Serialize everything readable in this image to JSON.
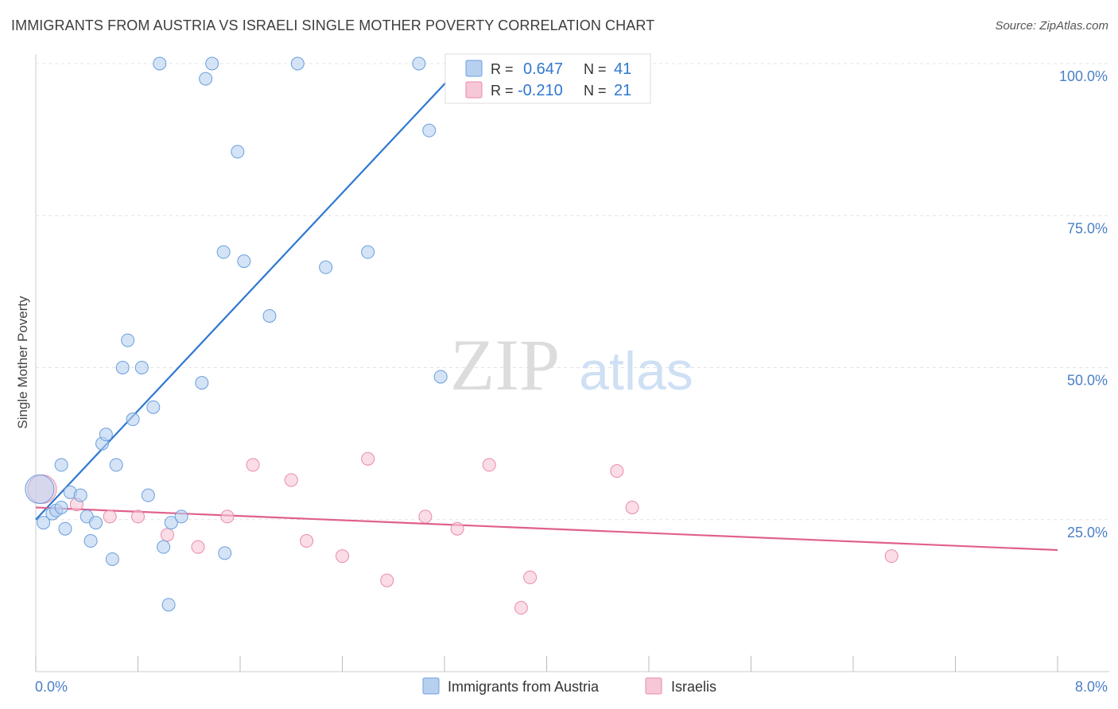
{
  "title": "IMMIGRANTS FROM AUSTRIA VS ISRAELI SINGLE MOTHER POVERTY CORRELATION CHART",
  "source": "Source: ZipAtlas.com",
  "watermark": {
    "zip": "ZIP",
    "atlas": "atlas"
  },
  "colors": {
    "blue": "#6a9fdc",
    "blue_fill": "#b8d0f0",
    "blue_line": "#2f78d0",
    "pink": "#e98aaa",
    "pink_fill": "#f6c7d6",
    "pink_line": "#e0608b",
    "tick_text": "#4a7fc8",
    "grid": "#e3e3e3"
  },
  "legend_box": {
    "rows": [
      {
        "r_label": "R =",
        "r_value": "0.647",
        "n_label": "N =",
        "n_value": "41"
      },
      {
        "r_label": "R =",
        "r_value": "-0.210",
        "n_label": "N =",
        "n_value": "21"
      }
    ]
  },
  "bottom_legend": [
    "Immigrants from Austria",
    "Israelis"
  ],
  "chart_data": {
    "type": "scatter",
    "title": "IMMIGRANTS FROM AUSTRIA VS ISRAELI SINGLE MOTHER POVERTY CORRELATION CHART",
    "xlabel": "",
    "ylabel": "Single Mother Poverty",
    "xlim": [
      0,
      8
    ],
    "ylim": [
      0,
      100
    ],
    "x_tick_labels": [
      "0.0%",
      "8.0%"
    ],
    "y_tick_labels": [
      "25.0%",
      "50.0%",
      "75.0%",
      "100.0%"
    ],
    "y_ticks": [
      25,
      50,
      75,
      100
    ],
    "grid": true,
    "legend_position": "top-center",
    "series": [
      {
        "name": "Immigrants from Austria",
        "color": "#6a9fdc",
        "trend": {
          "x": [
            0.0,
            3.35
          ],
          "y": [
            25.0,
            100.0
          ]
        },
        "points": [
          {
            "x": 0.03,
            "y": 30.0,
            "big": true
          },
          {
            "x": 0.06,
            "y": 24.5
          },
          {
            "x": 0.13,
            "y": 26.0
          },
          {
            "x": 0.16,
            "y": 26.5
          },
          {
            "x": 0.2,
            "y": 34.0
          },
          {
            "x": 0.2,
            "y": 27.0
          },
          {
            "x": 0.23,
            "y": 23.5
          },
          {
            "x": 0.27,
            "y": 29.5
          },
          {
            "x": 0.35,
            "y": 29.0
          },
          {
            "x": 0.4,
            "y": 25.5
          },
          {
            "x": 0.43,
            "y": 21.5
          },
          {
            "x": 0.47,
            "y": 24.5
          },
          {
            "x": 0.52,
            "y": 37.5
          },
          {
            "x": 0.55,
            "y": 39.0
          },
          {
            "x": 0.6,
            "y": 18.5
          },
          {
            "x": 0.63,
            "y": 34.0
          },
          {
            "x": 0.68,
            "y": 50.0
          },
          {
            "x": 0.72,
            "y": 54.5
          },
          {
            "x": 0.76,
            "y": 41.5
          },
          {
            "x": 0.83,
            "y": 50.0
          },
          {
            "x": 0.88,
            "y": 29.0
          },
          {
            "x": 0.92,
            "y": 43.5
          },
          {
            "x": 0.97,
            "y": 100.0
          },
          {
            "x": 1.0,
            "y": 20.5
          },
          {
            "x": 1.04,
            "y": 11.0
          },
          {
            "x": 1.06,
            "y": 24.5
          },
          {
            "x": 1.14,
            "y": 25.5
          },
          {
            "x": 1.3,
            "y": 47.5
          },
          {
            "x": 1.33,
            "y": 97.5
          },
          {
            "x": 1.38,
            "y": 100.0
          },
          {
            "x": 1.47,
            "y": 69.0
          },
          {
            "x": 1.48,
            "y": 19.5
          },
          {
            "x": 1.58,
            "y": 85.5
          },
          {
            "x": 1.63,
            "y": 67.5
          },
          {
            "x": 1.83,
            "y": 58.5
          },
          {
            "x": 2.05,
            "y": 100.0
          },
          {
            "x": 2.27,
            "y": 66.5
          },
          {
            "x": 2.6,
            "y": 69.0
          },
          {
            "x": 3.0,
            "y": 100.0
          },
          {
            "x": 3.08,
            "y": 89.0
          },
          {
            "x": 3.17,
            "y": 48.5
          }
        ]
      },
      {
        "name": "Israelis",
        "color": "#e98aaa",
        "trend": {
          "x": [
            0.0,
            8.0
          ],
          "y": [
            27.0,
            20.0
          ]
        },
        "points": [
          {
            "x": 0.05,
            "y": 30.0,
            "big": true
          },
          {
            "x": 0.32,
            "y": 27.5
          },
          {
            "x": 0.58,
            "y": 25.5
          },
          {
            "x": 0.8,
            "y": 25.5
          },
          {
            "x": 1.03,
            "y": 22.5
          },
          {
            "x": 1.27,
            "y": 20.5
          },
          {
            "x": 1.5,
            "y": 25.5
          },
          {
            "x": 1.7,
            "y": 34.0
          },
          {
            "x": 2.0,
            "y": 31.5
          },
          {
            "x": 2.12,
            "y": 21.5
          },
          {
            "x": 2.4,
            "y": 19.0
          },
          {
            "x": 2.6,
            "y": 35.0
          },
          {
            "x": 2.75,
            "y": 15.0
          },
          {
            "x": 3.05,
            "y": 25.5
          },
          {
            "x": 3.3,
            "y": 23.5
          },
          {
            "x": 3.55,
            "y": 34.0
          },
          {
            "x": 3.8,
            "y": 10.5
          },
          {
            "x": 3.87,
            "y": 15.5
          },
          {
            "x": 4.55,
            "y": 33.0
          },
          {
            "x": 4.67,
            "y": 27.0
          },
          {
            "x": 6.7,
            "y": 19.0
          }
        ]
      }
    ]
  }
}
